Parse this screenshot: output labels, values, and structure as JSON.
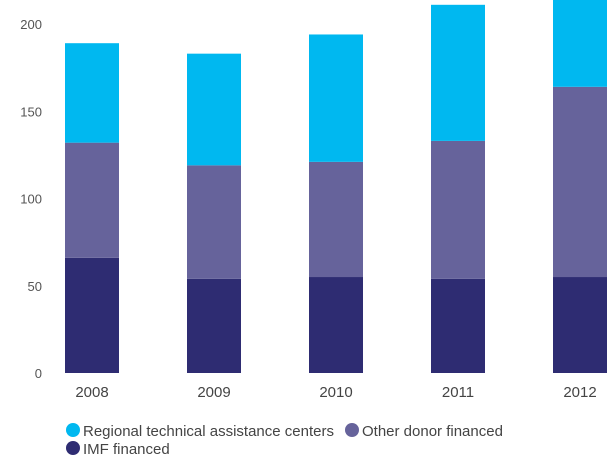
{
  "colors": {
    "regional": "#00B8F0",
    "other_donor": "#66639B",
    "imf": "#2E2C72"
  },
  "chart_data": {
    "type": "bar",
    "stacked": true,
    "categories": [
      "2008",
      "2009",
      "2010",
      "2011",
      "2012"
    ],
    "series": [
      {
        "name": "IMF financed",
        "color": "#2E2C72",
        "values": [
          66,
          54,
          55,
          54,
          55
        ]
      },
      {
        "name": "Other donor financed",
        "color": "#66639B",
        "values": [
          66,
          65,
          66,
          79,
          109
        ]
      },
      {
        "name": "Regional technical assistance centers",
        "color": "#00B8F0",
        "values": [
          57,
          64,
          73,
          78,
          57
        ]
      }
    ],
    "title": "",
    "xlabel": "",
    "ylabel": "",
    "ylim": [
      0,
      200
    ],
    "yticks": [
      "0",
      "50",
      "100",
      "150",
      "200"
    ],
    "grid": false,
    "legend_position": "bottom",
    "legend_order": [
      "Regional technical assistance centers",
      "Other donor financed",
      "IMF financed"
    ]
  }
}
